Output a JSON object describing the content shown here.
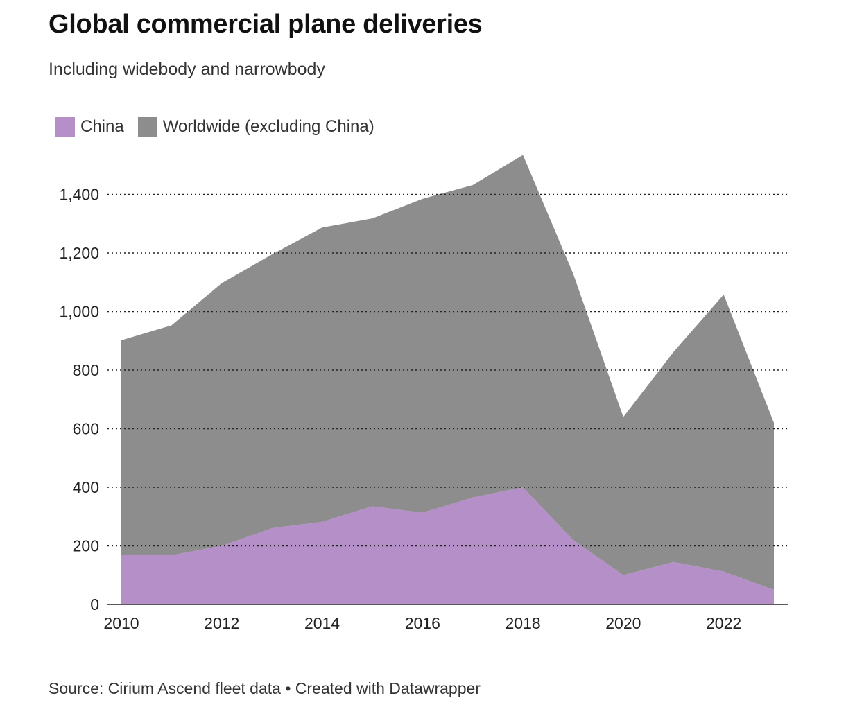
{
  "header": {
    "title": "Global commercial plane deliveries",
    "subtitle": "Including widebody and narrowbody"
  },
  "legend": [
    {
      "label": "China",
      "color": "#b58fc7"
    },
    {
      "label": "Worldwide (excluding China)",
      "color": "#8e8d8d"
    }
  ],
  "chart_data": {
    "type": "area",
    "stacked": true,
    "x": [
      2010,
      2011,
      2012,
      2013,
      2014,
      2015,
      2016,
      2017,
      2018,
      2019,
      2020,
      2021,
      2022,
      2023
    ],
    "series": [
      {
        "name": "China",
        "color": "#b58fc7",
        "values": [
          170,
          168,
          200,
          260,
          282,
          335,
          313,
          365,
          400,
          220,
          100,
          145,
          112,
          50
        ]
      },
      {
        "name": "Worldwide (excluding China)",
        "color": "#8e8d8d",
        "values": [
          732,
          785,
          897,
          935,
          1005,
          983,
          1072,
          1067,
          1135,
          910,
          540,
          717,
          946,
          570
        ]
      }
    ],
    "yticks": [
      0,
      200,
      400,
      600,
      800,
      1000,
      1200,
      1400
    ],
    "ytick_labels": [
      "0",
      "200",
      "400",
      "600",
      "800",
      "1,000",
      "1,200",
      "1,400"
    ],
    "xticks": [
      2010,
      2012,
      2014,
      2016,
      2018,
      2020,
      2022
    ],
    "xtick_labels": [
      "2010",
      "2012",
      "2014",
      "2016",
      "2018",
      "2020",
      "2022"
    ],
    "xlim": [
      2010,
      2023
    ],
    "ylim": [
      0,
      1540
    ],
    "grid": "horizontal-dotted",
    "legend_position": "top-left"
  },
  "footer": {
    "source": "Source: Cirium Ascend fleet data • Created with Datawrapper"
  }
}
